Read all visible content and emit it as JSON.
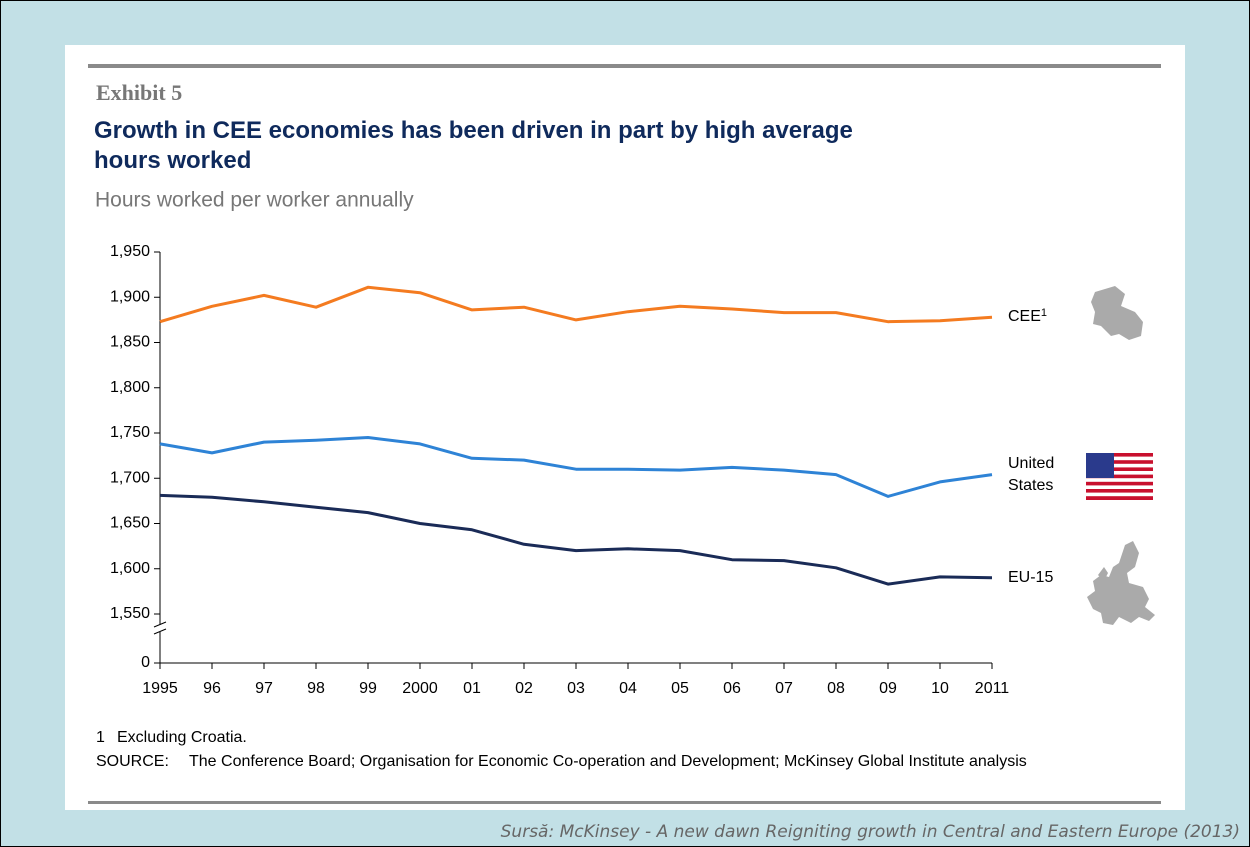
{
  "exhibit": "Exhibit 5",
  "footnote": {
    "marker": "1",
    "text": "Excluding Croatia."
  },
  "source": {
    "label": "SOURCE:",
    "text": "The Conference Board; Organisation for Economic Co-operation and Development; McKinsey Global Institute analysis"
  },
  "caption": "Sursă: McKinsey - A new dawn Reigniting growth in Central and Eastern Europe (2013)",
  "chart_data": {
    "type": "line",
    "title": "Growth in CEE economies has been driven in part by high average hours worked",
    "subtitle": "Hours worked per worker annually",
    "categories": [
      "1995",
      "96",
      "97",
      "98",
      "99",
      "2000",
      "01",
      "02",
      "03",
      "04",
      "05",
      "06",
      "07",
      "08",
      "09",
      "10",
      "2011"
    ],
    "series": [
      {
        "name": "CEE",
        "name_superscript": "1",
        "color": "#f47b20",
        "values": [
          1873,
          1890,
          1902,
          1889,
          1911,
          1905,
          1886,
          1889,
          1875,
          1884,
          1890,
          1887,
          1883,
          1883,
          1873,
          1874,
          1878
        ]
      },
      {
        "name": "United States",
        "color": "#2e83d6",
        "values": [
          1738,
          1728,
          1740,
          1742,
          1745,
          1738,
          1722,
          1720,
          1710,
          1710,
          1709,
          1712,
          1709,
          1704,
          1680,
          1696,
          1704
        ]
      },
      {
        "name": "EU-15",
        "color": "#1a2b57",
        "values": [
          1681,
          1679,
          1674,
          1668,
          1662,
          1650,
          1643,
          1627,
          1620,
          1622,
          1620,
          1610,
          1609,
          1601,
          1583,
          1591,
          1590
        ]
      }
    ],
    "ylim": [
      0,
      1950
    ],
    "axis_break": [
      0,
      1550
    ],
    "yticks": [
      0,
      {
        "value": 1550,
        "label": "1,550"
      },
      {
        "value": 1600,
        "label": "1,600"
      },
      {
        "value": 1650,
        "label": "1,650"
      },
      {
        "value": 1700,
        "label": "1,700"
      },
      {
        "value": 1750,
        "label": "1,750"
      },
      {
        "value": 1800,
        "label": "1,800"
      },
      {
        "value": 1850,
        "label": "1,850"
      },
      {
        "value": 1900,
        "label": "1,900"
      },
      {
        "value": 1950,
        "label": "1,950"
      }
    ],
    "grid": false
  }
}
